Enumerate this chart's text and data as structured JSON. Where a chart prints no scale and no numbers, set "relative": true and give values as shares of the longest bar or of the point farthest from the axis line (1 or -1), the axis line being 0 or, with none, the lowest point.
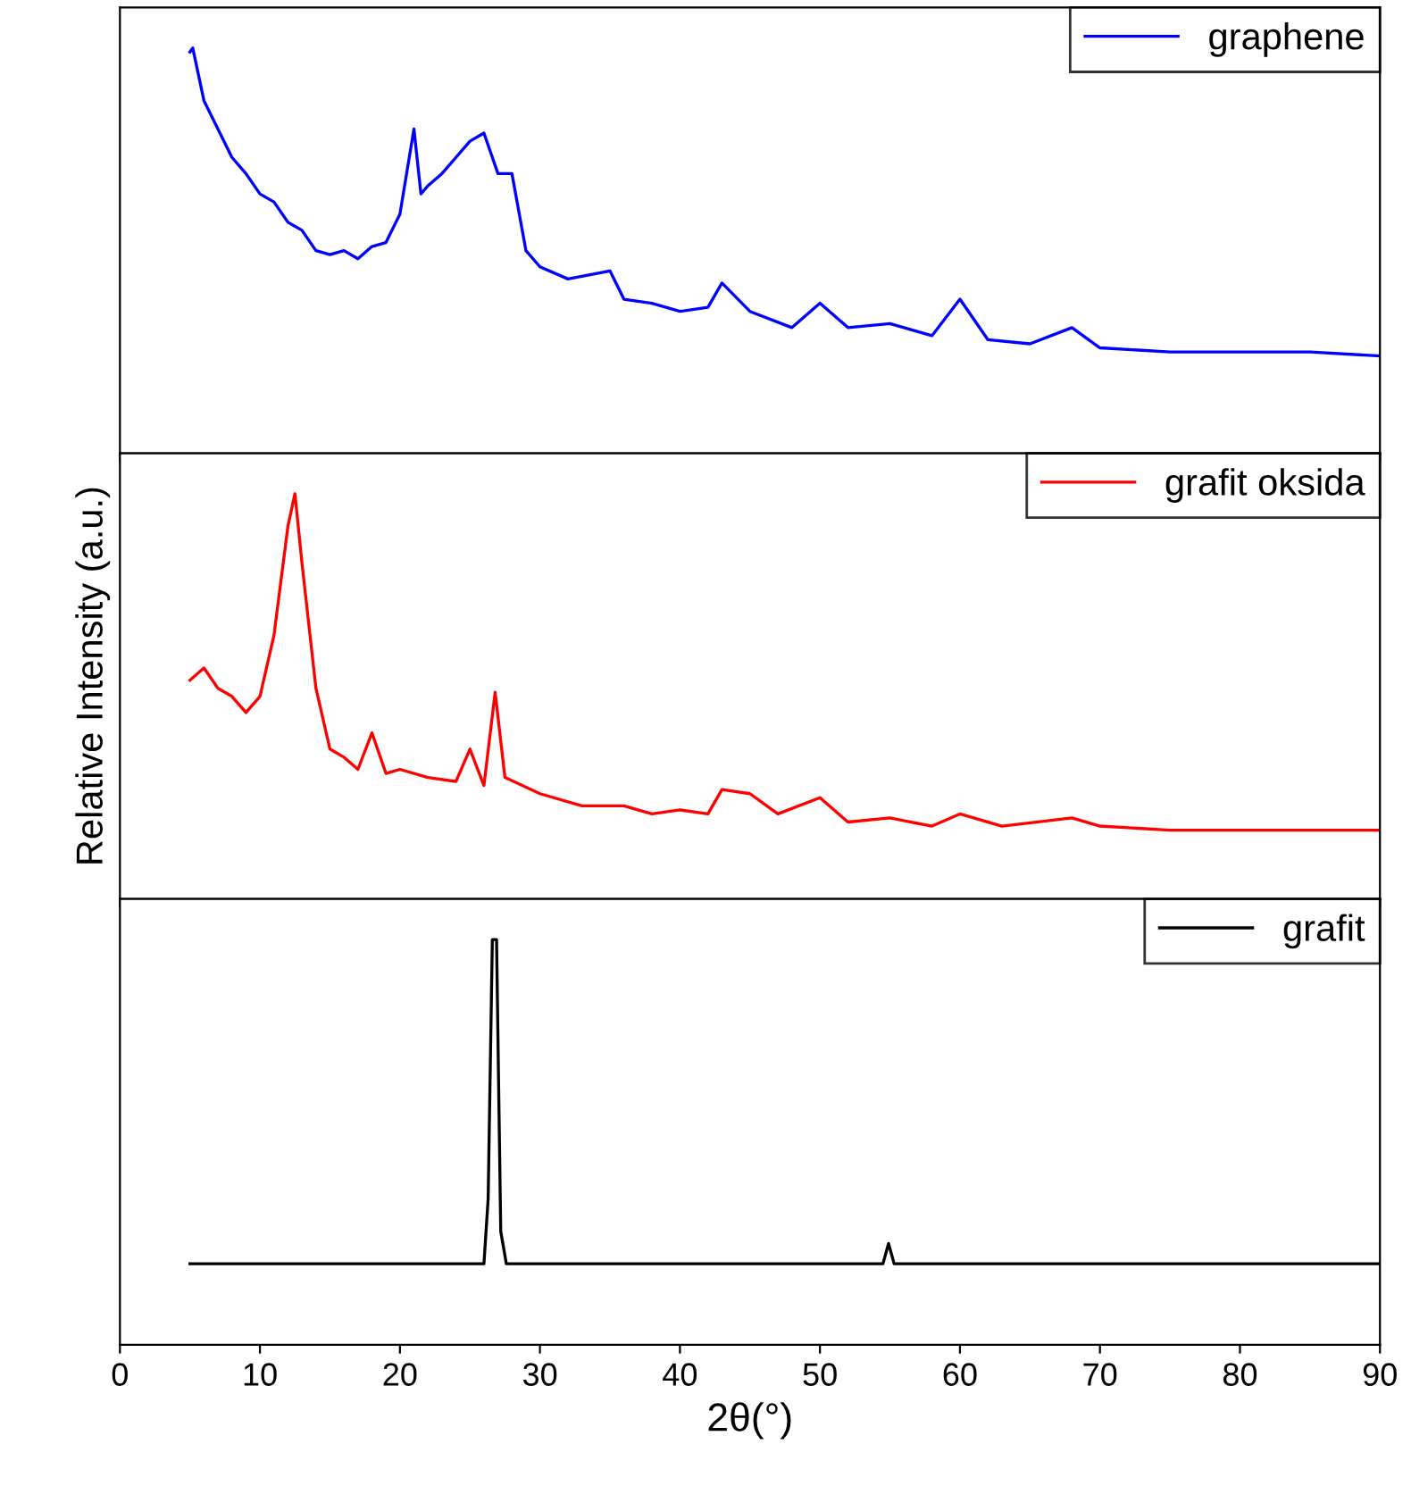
{
  "chart_data": [
    {
      "type": "line",
      "relative": true,
      "xlim": [
        0,
        90
      ],
      "xticks": [
        0,
        10,
        20,
        30,
        40,
        50,
        60,
        70,
        80,
        90
      ],
      "tick_labels": false,
      "legend": "top right",
      "grid": false,
      "series": [
        {
          "name": "graphene",
          "color": "#0000ff",
          "x": [
            5,
            5.2,
            6,
            7,
            8,
            9,
            10,
            11,
            12,
            13,
            14,
            15,
            16,
            17,
            18,
            19,
            20,
            21,
            21.5,
            22,
            23,
            24,
            25,
            26,
            27,
            28,
            29,
            30,
            32,
            35,
            36,
            38,
            40,
            42,
            43,
            45,
            48,
            50,
            52,
            55,
            58,
            60,
            62,
            65,
            68,
            70,
            75,
            80,
            85,
            90
          ],
          "values": [
            0.99,
            1.0,
            0.87,
            0.8,
            0.73,
            0.69,
            0.64,
            0.62,
            0.57,
            0.55,
            0.5,
            0.49,
            0.5,
            0.48,
            0.51,
            0.52,
            0.59,
            0.8,
            0.64,
            0.66,
            0.69,
            0.73,
            0.77,
            0.79,
            0.69,
            0.69,
            0.5,
            0.46,
            0.43,
            0.45,
            0.38,
            0.37,
            0.35,
            0.36,
            0.42,
            0.35,
            0.31,
            0.37,
            0.31,
            0.32,
            0.29,
            0.38,
            0.28,
            0.27,
            0.31,
            0.26,
            0.25,
            0.25,
            0.25,
            0.24
          ]
        }
      ]
    },
    {
      "type": "line",
      "relative": true,
      "xlim": [
        0,
        90
      ],
      "xticks": [
        0,
        10,
        20,
        30,
        40,
        50,
        60,
        70,
        80,
        90
      ],
      "tick_labels": false,
      "legend": "top right",
      "grid": false,
      "ylabel": "Relative Intensity (a.u.)",
      "series": [
        {
          "name": "grafit oksida",
          "color": "#ff0000",
          "x": [
            5,
            6,
            7,
            8,
            9,
            10,
            11,
            12,
            12.5,
            13,
            14,
            15,
            16,
            17,
            18,
            19,
            20,
            22,
            24,
            25,
            26,
            26.8,
            27.5,
            30,
            33,
            36,
            38,
            40,
            42,
            43,
            45,
            47,
            50,
            52,
            55,
            58,
            60,
            63,
            68,
            70,
            75,
            80,
            85,
            90
          ],
          "values": [
            0.54,
            0.57,
            0.52,
            0.5,
            0.46,
            0.5,
            0.65,
            0.92,
            1.0,
            0.83,
            0.52,
            0.37,
            0.35,
            0.32,
            0.41,
            0.31,
            0.32,
            0.3,
            0.29,
            0.37,
            0.28,
            0.51,
            0.3,
            0.26,
            0.23,
            0.23,
            0.21,
            0.22,
            0.21,
            0.27,
            0.26,
            0.21,
            0.25,
            0.19,
            0.2,
            0.18,
            0.21,
            0.18,
            0.2,
            0.18,
            0.17,
            0.17,
            0.17,
            0.17
          ]
        }
      ]
    },
    {
      "type": "line",
      "relative": true,
      "xlim": [
        0,
        90
      ],
      "xticks": [
        0,
        10,
        20,
        30,
        40,
        50,
        60,
        70,
        80,
        90
      ],
      "tick_labels": "x",
      "legend": "top right",
      "grid": false,
      "xlabel": "2θ(°)",
      "series": [
        {
          "name": "grafit",
          "color": "#000000",
          "x": [
            5,
            26,
            26.3,
            26.6,
            26.9,
            27.2,
            27.6,
            54.5,
            54.9,
            55.3,
            90
          ],
          "values": [
            0.2,
            0.2,
            0.36,
            1.0,
            1.0,
            0.28,
            0.2,
            0.2,
            0.25,
            0.2,
            0.2
          ]
        }
      ]
    }
  ]
}
